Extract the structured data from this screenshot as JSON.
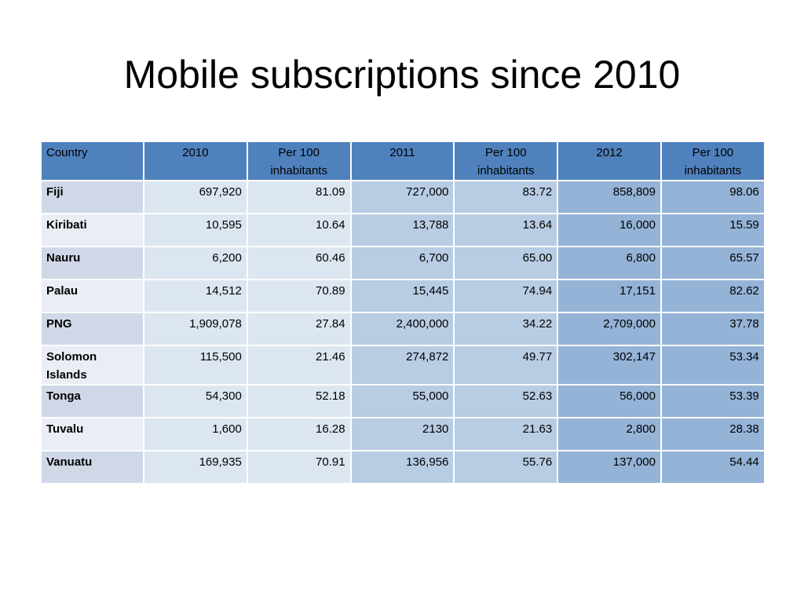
{
  "slide": {
    "title": "Mobile subscriptions since 2010"
  },
  "table": {
    "headers": [
      "Country",
      "2010",
      "Per 100 inhabitants",
      "2011",
      "Per 100 inhabitants",
      "2012",
      "Per 100 inhabitants"
    ],
    "rows": [
      [
        "Fiji",
        "697,920",
        "81.09",
        "727,000",
        "83.72",
        "858,809",
        "98.06"
      ],
      [
        "Kiribati",
        "10,595",
        "10.64",
        "13,788",
        "13.64",
        "16,000",
        "15.59"
      ],
      [
        "Nauru",
        "6,200",
        "60.46",
        "6,700",
        "65.00",
        "6,800",
        "65.57"
      ],
      [
        "Palau",
        "14,512",
        "70.89",
        "15,445",
        "74.94",
        "17,151",
        "82.62"
      ],
      [
        "PNG",
        "1,909,078",
        "27.84",
        "2,400,000",
        "34.22",
        "2,709,000",
        "37.78"
      ],
      [
        "Solomon Islands",
        "115,500",
        "21.46",
        "274,872",
        "49.77",
        "302,147",
        "53.34"
      ],
      [
        "Tonga",
        "54,300",
        "52.18",
        "55,000",
        "52.63",
        "56,000",
        "53.39"
      ],
      [
        "Tuvalu",
        "1,600",
        "16.28",
        "2130",
        "21.63",
        "2,800",
        "28.38"
      ],
      [
        "Vanuatu",
        "169,935",
        "70.91",
        "136,956",
        "55.76",
        "137,000",
        "54.44"
      ]
    ]
  },
  "colors": {
    "header": "#4f81bd",
    "country_odd": "#d0d8e8",
    "country_even": "#e9edf4",
    "band_2010": "#dce6f1",
    "band_2011": "#b8cce4",
    "band_2012": "#95b3d7"
  }
}
